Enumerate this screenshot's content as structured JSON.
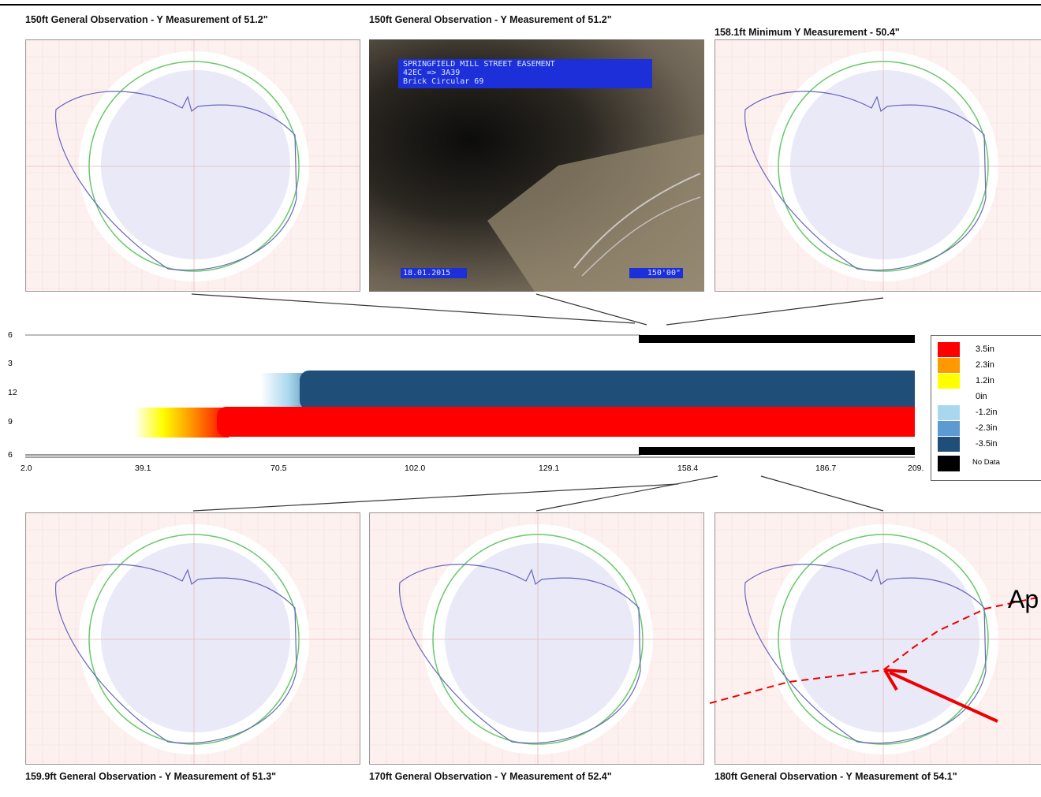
{
  "top_panels": [
    {
      "caption": "150ft General Observation - Y Measurement of 51.2\""
    },
    {
      "caption": "150ft General Observation - Y Measurement of 51.2\""
    },
    {
      "caption": "158.1ft Minimum Y Measurement - 50.4\""
    }
  ],
  "video": {
    "lines": [
      "SPRINGFIELD MILL STREET EASEMENT",
      "42EC => 3A39",
      "Brick Circular 69"
    ],
    "date": "18.01.2015",
    "distance": "150'00\""
  },
  "strip": {
    "y_labels": [
      "6",
      "3",
      "12",
      "9",
      "6"
    ],
    "x_labels": [
      "2.0",
      "39.1",
      "70.5",
      "102.0",
      "129.1",
      "158.4",
      "186.7",
      "209."
    ],
    "legend": [
      {
        "label": "3.5in",
        "color": "#ff0000"
      },
      {
        "label": "2.3in",
        "color": "#ff9900"
      },
      {
        "label": "1.2in",
        "color": "#ffff00"
      },
      {
        "label": "0in",
        "color": "#ffffff"
      },
      {
        "label": "-1.2in",
        "color": "#a9d8ee"
      },
      {
        "label": "-2.3in",
        "color": "#5b9bd1"
      },
      {
        "label": "-3.5in",
        "color": "#1f4e79"
      },
      {
        "label": "No Data",
        "color": "#000000"
      }
    ]
  },
  "bottom_panels": [
    {
      "caption": "159.9ft General Observation - Y Measurement of 51.3\""
    },
    {
      "caption": "170ft General Observation - Y Measurement of 52.4\""
    },
    {
      "caption": "180ft General Observation - Y Measurement of 54.1\""
    }
  ],
  "annotation": "Ap"
}
